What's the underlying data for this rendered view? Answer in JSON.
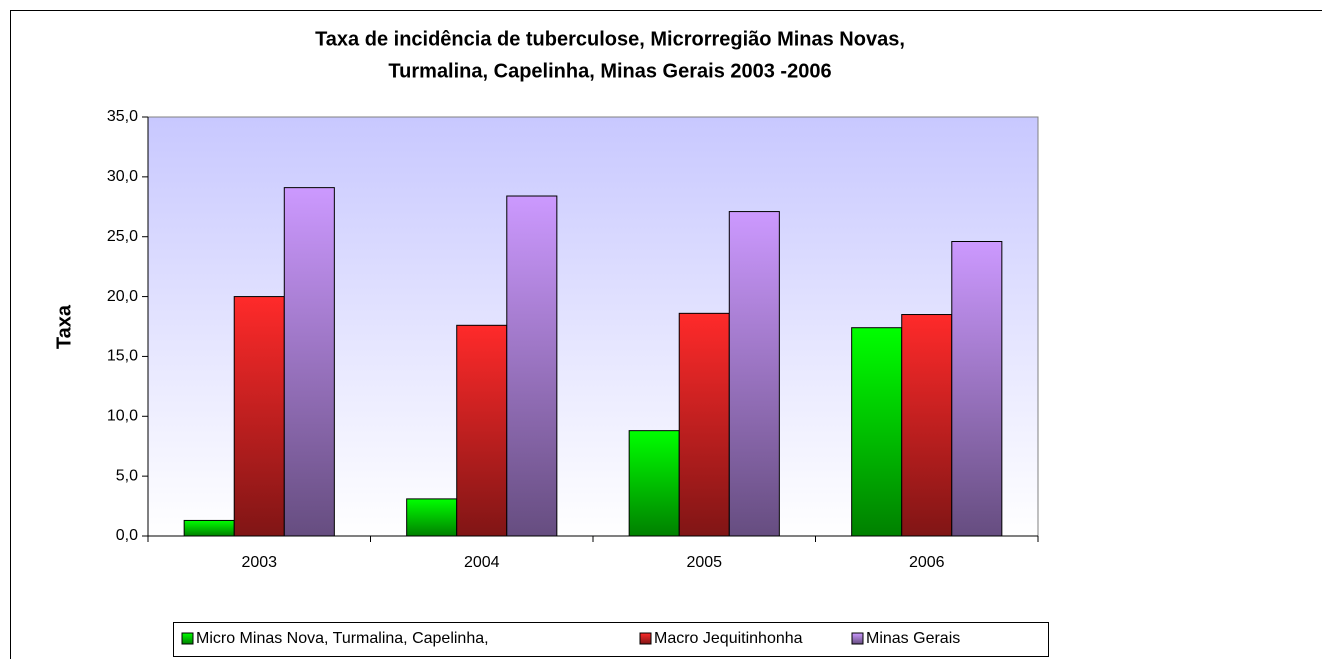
{
  "chart_data": {
    "type": "bar",
    "title": [
      "Taxa de incidência  de tuberculose, Microrregião Minas Novas,",
      "Turmalina, Capelinha, Minas Gerais 2003 -2006"
    ],
    "y_label": "Taxa",
    "categories": [
      "2003",
      "2004",
      "2005",
      "2006"
    ],
    "series": [
      {
        "name": "Micro Minas Nova, Turmalina, Capelinha,",
        "color": "#00ff00",
        "values": [
          1.3,
          3.1,
          8.8,
          17.4
        ]
      },
      {
        "name": "Macro  Jequitinhonha",
        "color": "#ff2a2a",
        "values": [
          20.0,
          17.6,
          18.6,
          18.5
        ]
      },
      {
        "name": "Minas Gerais",
        "color": "#cc99ff",
        "values": [
          29.1,
          28.4,
          27.1,
          24.6
        ]
      }
    ],
    "ylim": [
      0,
      35
    ],
    "yticks": [
      {
        "value": 0,
        "label": "0,0"
      },
      {
        "value": 5,
        "label": "5,0"
      },
      {
        "value": 10,
        "label": "10,0"
      },
      {
        "value": 15,
        "label": "15,0"
      },
      {
        "value": 20,
        "label": "20,0"
      },
      {
        "value": 25,
        "label": "25,0"
      },
      {
        "value": 30,
        "label": "30,0"
      },
      {
        "value": 35,
        "label": "35,0"
      }
    ],
    "legend": "bottom"
  }
}
